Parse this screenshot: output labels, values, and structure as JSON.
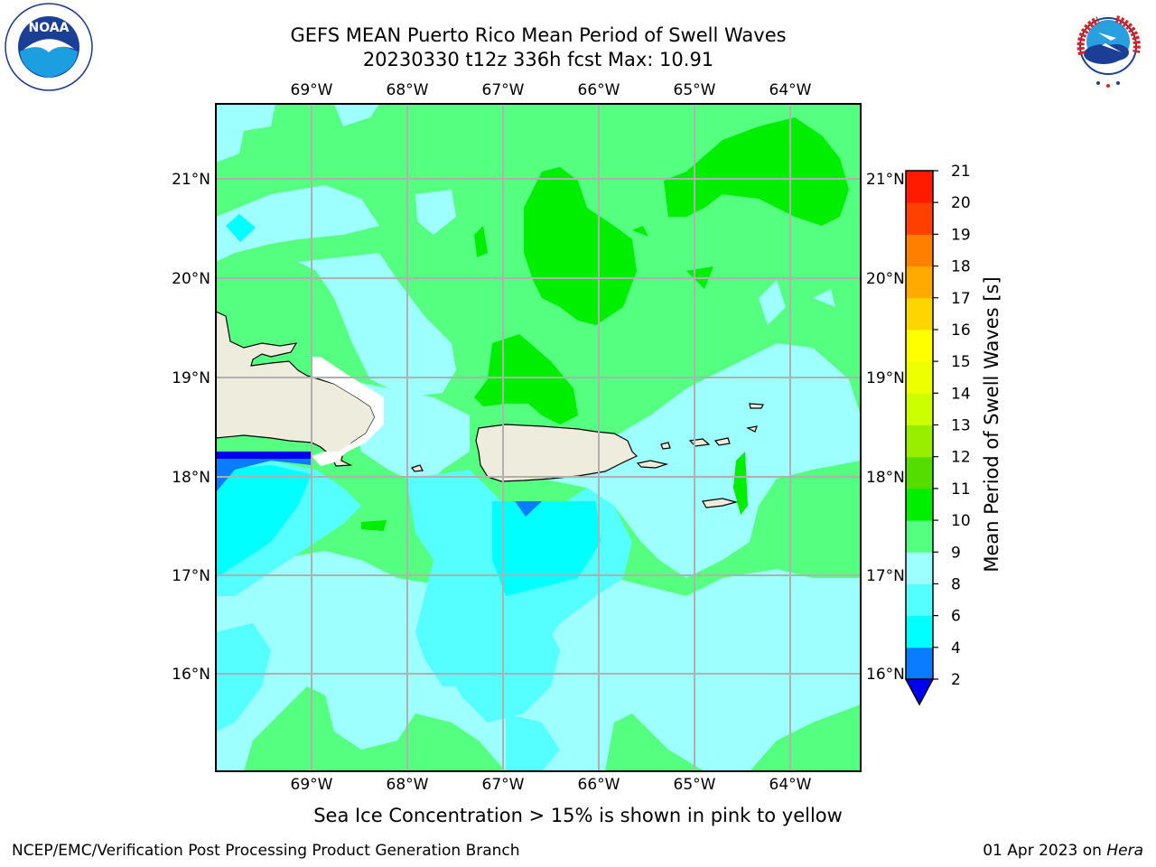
{
  "header": {
    "title_line1": "GEFS MEAN Puerto Rico Mean Period of Swell Waves",
    "title_line2": "20230330 t12z 336h fcst   Max: 10.91"
  },
  "logos": {
    "left": "NOAA",
    "right": "NATIONAL WEATHER SERVICE"
  },
  "map": {
    "lon_labels": [
      "69°W",
      "68°W",
      "67°W",
      "66°W",
      "65°W",
      "64°W"
    ],
    "lat_labels": [
      "21°N",
      "20°N",
      "19°N",
      "18°N",
      "17°N",
      "16°N"
    ],
    "land_color": "#eeecdc",
    "grid_color": "#b0b0b0"
  },
  "colorbar": {
    "label": "Mean Period of Swell Waves [s]",
    "ticks": [
      "2",
      "4",
      "6",
      "8",
      "9",
      "10",
      "11",
      "12",
      "13",
      "14",
      "15",
      "16",
      "17",
      "18",
      "19",
      "20",
      "21"
    ],
    "colors": [
      "#0000ee",
      "#0a7cff",
      "#00ffff",
      "#55ffff",
      "#9effff",
      "#55ff80",
      "#00ee00",
      "#55dd00",
      "#99ee00",
      "#ccff00",
      "#eeff00",
      "#ffff00",
      "#ffd500",
      "#ffaa00",
      "#ff8000",
      "#ff4000",
      "#ff1a00",
      "#ff0000"
    ]
  },
  "footer": {
    "note": "Sea Ice Concentration > 15% is shown in pink to yellow",
    "credit": "NCEP/EMC/Verification Post Processing Product Generation Branch",
    "date": "01 Apr 2023 on",
    "host": "Hera"
  }
}
